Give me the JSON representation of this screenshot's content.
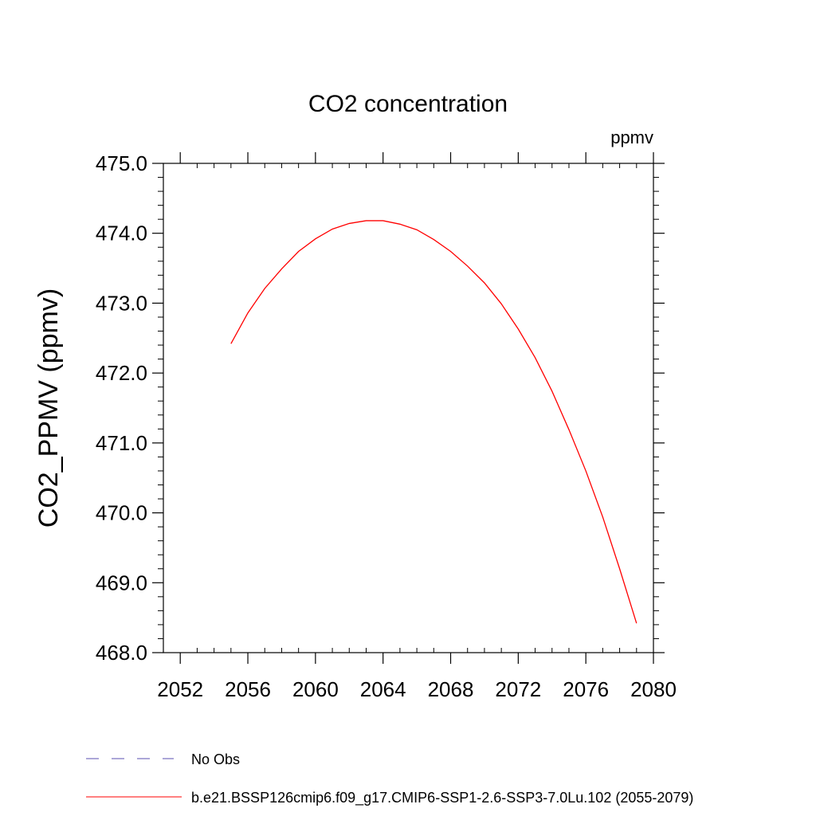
{
  "chart_data": {
    "type": "line",
    "title": "CO2 concentration",
    "units_label": "ppmv",
    "ylabel": "CO2_PPMV  (ppmv)",
    "xlabel": "",
    "xlim": [
      2051,
      2080
    ],
    "ylim": [
      468.0,
      475.0
    ],
    "xticks": [
      2052,
      2056,
      2060,
      2064,
      2068,
      2072,
      2076,
      2080
    ],
    "yticks": [
      "468.0",
      "469.0",
      "470.0",
      "471.0",
      "472.0",
      "473.0",
      "474.0",
      "475.0"
    ],
    "series": [
      {
        "name": "b.e21.BSSP126cmip6.f09_g17.CMIP6-SSP1-2.6-SSP3-7.0Lu.102 (2055-2079)",
        "color": "#ff0000",
        "style": "solid",
        "x": [
          2055,
          2056,
          2057,
          2058,
          2059,
          2060,
          2061,
          2062,
          2063,
          2064,
          2065,
          2066,
          2067,
          2068,
          2069,
          2070,
          2071,
          2072,
          2073,
          2074,
          2075,
          2076,
          2077,
          2078,
          2079
        ],
        "y": [
          472.42,
          472.86,
          473.21,
          473.49,
          473.74,
          473.92,
          474.06,
          474.14,
          474.18,
          474.18,
          474.13,
          474.05,
          473.91,
          473.74,
          473.53,
          473.29,
          472.99,
          472.63,
          472.22,
          471.74,
          471.19,
          470.6,
          469.94,
          469.2,
          468.42
        ]
      }
    ],
    "legend": [
      {
        "label": "No Obs",
        "color": "#5a4fb0",
        "style": "dashed"
      },
      {
        "label": "b.e21.BSSP126cmip6.f09_g17.CMIP6-SSP1-2.6-SSP3-7.0Lu.102 (2055-2079)",
        "color": "#ff0000",
        "style": "solid"
      }
    ]
  }
}
